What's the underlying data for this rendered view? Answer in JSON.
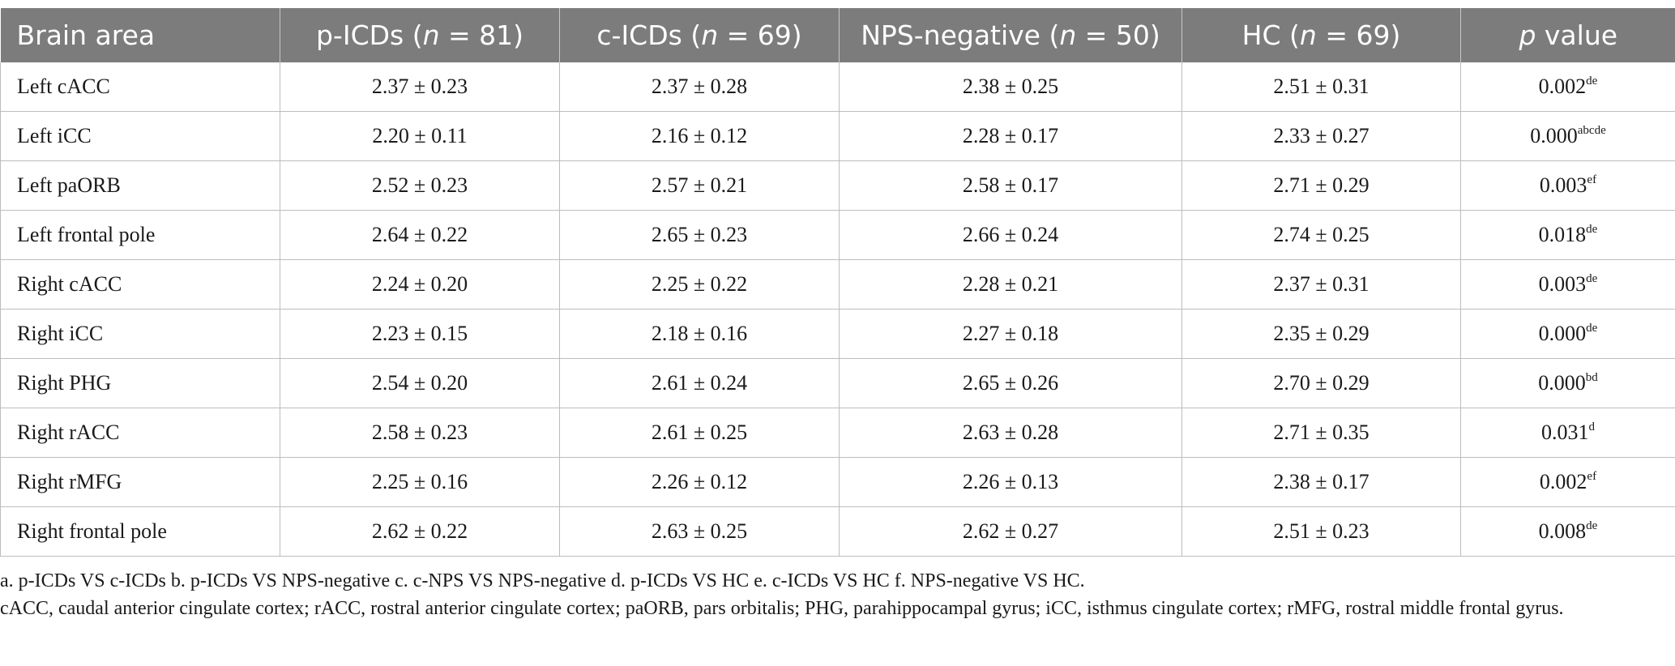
{
  "table": {
    "headers": [
      {
        "text": "Brain area",
        "italic_n": false
      },
      {
        "pre": "p-ICDs (",
        "n": "n",
        "post": " = 81)"
      },
      {
        "pre": "c-ICDs (",
        "n": "n",
        "post": " = 69)"
      },
      {
        "pre": "NPS-negative (",
        "n": "n",
        "post": " = 50)"
      },
      {
        "pre": "HC (",
        "n": "n",
        "post": " = 69)"
      },
      {
        "p": "p",
        "post": " value"
      }
    ],
    "rows": [
      {
        "area": "Left cACC",
        "p_icds": "2.37 ± 0.23",
        "c_icds": "2.37 ± 0.28",
        "nps_negative": "2.38 ± 0.25",
        "hc": "2.51 ± 0.31",
        "p_value": "0.002",
        "p_sup": "de"
      },
      {
        "area": "Left iCC",
        "p_icds": "2.20 ± 0.11",
        "c_icds": "2.16 ± 0.12",
        "nps_negative": "2.28 ± 0.17",
        "hc": "2.33 ± 0.27",
        "p_value": "0.000",
        "p_sup": "abcde"
      },
      {
        "area": "Left paORB",
        "p_icds": "2.52 ± 0.23",
        "c_icds": "2.57 ± 0.21",
        "nps_negative": "2.58 ± 0.17",
        "hc": "2.71 ± 0.29",
        "p_value": "0.003",
        "p_sup": "ef"
      },
      {
        "area": "Left frontal pole",
        "p_icds": "2.64 ± 0.22",
        "c_icds": "2.65 ± 0.23",
        "nps_negative": "2.66 ± 0.24",
        "hc": "2.74 ± 0.25",
        "p_value": "0.018",
        "p_sup": "de"
      },
      {
        "area": "Right cACC",
        "p_icds": "2.24 ± 0.20",
        "c_icds": "2.25 ± 0.22",
        "nps_negative": "2.28 ± 0.21",
        "hc": "2.37 ± 0.31",
        "p_value": "0.003",
        "p_sup": "de"
      },
      {
        "area": "Right iCC",
        "p_icds": "2.23 ± 0.15",
        "c_icds": "2.18 ± 0.16",
        "nps_negative": "2.27 ± 0.18",
        "hc": "2.35 ± 0.29",
        "p_value": "0.000",
        "p_sup": "de"
      },
      {
        "area": "Right PHG",
        "p_icds": "2.54 ± 0.20",
        "c_icds": "2.61 ± 0.24",
        "nps_negative": "2.65 ± 0.26",
        "hc": "2.70 ± 0.29",
        "p_value": "0.000",
        "p_sup": "bd"
      },
      {
        "area": "Right rACC",
        "p_icds": "2.58 ± 0.23",
        "c_icds": "2.61 ± 0.25",
        "nps_negative": "2.63 ± 0.28",
        "hc": "2.71 ± 0.35",
        "p_value": "0.031",
        "p_sup": "d"
      },
      {
        "area": "Right rMFG",
        "p_icds": "2.25 ± 0.16",
        "c_icds": "2.26 ± 0.12",
        "nps_negative": "2.26 ± 0.13",
        "hc": "2.38 ± 0.17",
        "p_value": "0.002",
        "p_sup": "ef"
      },
      {
        "area": "Right frontal pole",
        "p_icds": "2.62 ± 0.22",
        "c_icds": "2.63 ± 0.25",
        "nps_negative": "2.62 ± 0.27",
        "hc": "2.51 ± 0.23",
        "p_value": "0.008",
        "p_sup": "de"
      }
    ]
  },
  "notes": {
    "comparisons": "a. p-ICDs VS c-ICDs b. p-ICDs VS NPS-negative c. c-NPS VS NPS-negative d. p-ICDs VS HC e. c-ICDs VS HC f. NPS-negative VS HC.",
    "abbreviations": "cACC, caudal anterior cingulate cortex; rACC, rostral anterior cingulate cortex; paORB, pars orbitalis; PHG, parahippocampal gyrus; iCC, isthmus cingulate cortex; rMFG, rostral middle frontal gyrus."
  }
}
